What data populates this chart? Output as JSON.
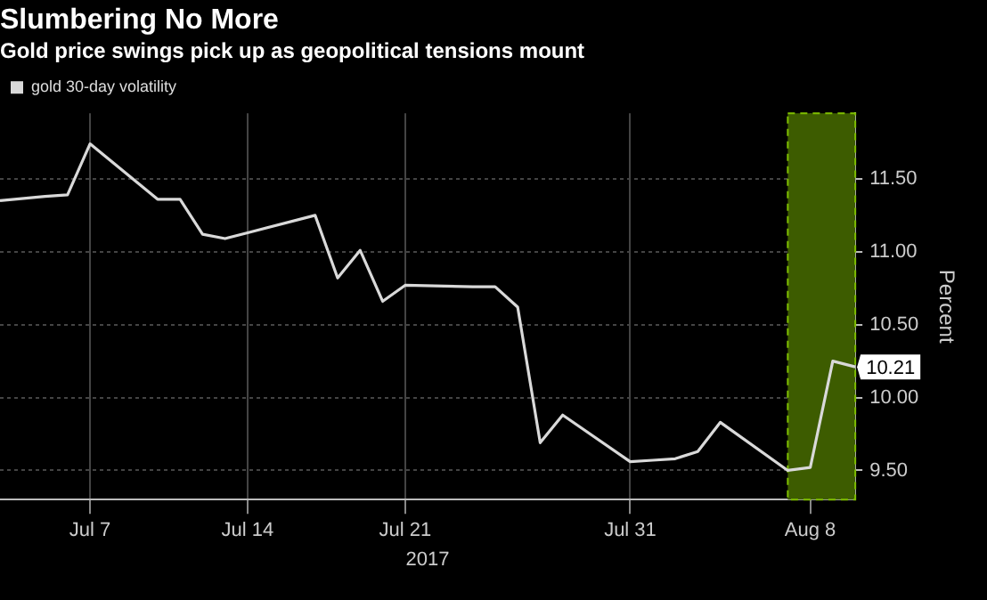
{
  "chart_data": {
    "type": "line",
    "title": "Slumbering No More",
    "subtitle": "Gold price swings pick up as geopolitical tensions mount",
    "xlabel": "2017",
    "ylabel": "Percent",
    "x": [
      "2017-07-03",
      "2017-07-05",
      "2017-07-06",
      "2017-07-07",
      "2017-07-10",
      "2017-07-11",
      "2017-07-12",
      "2017-07-13",
      "2017-07-14",
      "2017-07-17",
      "2017-07-18",
      "2017-07-19",
      "2017-07-20",
      "2017-07-21",
      "2017-07-24",
      "2017-07-25",
      "2017-07-26",
      "2017-07-27",
      "2017-07-28",
      "2017-07-31",
      "2017-08-01",
      "2017-08-02",
      "2017-08-03",
      "2017-08-04",
      "2017-08-07",
      "2017-08-08",
      "2017-08-09",
      "2017-08-10"
    ],
    "series": [
      {
        "name": "gold 30-day volatility",
        "color": "#d9d9d9",
        "values": [
          11.35,
          11.38,
          11.39,
          11.74,
          11.36,
          11.36,
          11.12,
          11.09,
          11.13,
          11.25,
          10.82,
          11.01,
          10.66,
          10.77,
          10.76,
          10.76,
          10.62,
          9.69,
          9.88,
          9.56,
          9.57,
          9.58,
          9.63,
          9.83,
          9.5,
          9.52,
          10.25,
          10.21
        ],
        "value_labels": [
          null,
          null,
          null,
          null,
          null,
          null,
          null,
          null,
          null,
          null,
          null,
          null,
          null,
          null,
          null,
          null,
          null,
          null,
          null,
          null,
          null,
          null,
          null,
          null,
          null,
          null,
          null,
          "10.21"
        ]
      }
    ],
    "xlim": [
      "2017-07-03",
      "2017-08-10"
    ],
    "xticks": [
      {
        "value": "2017-07-07",
        "label": "Jul 7"
      },
      {
        "value": "2017-07-14",
        "label": "Jul 14"
      },
      {
        "value": "2017-07-21",
        "label": "Jul 21"
      },
      {
        "value": "2017-07-31",
        "label": "Jul 31"
      },
      {
        "value": "2017-08-08",
        "label": "Aug 8"
      }
    ],
    "ylim": [
      9.3,
      11.95
    ],
    "yticks": [
      {
        "value": 9.5,
        "label": "9.50"
      },
      {
        "value": 10,
        "label": "10.00"
      },
      {
        "value": 10.5,
        "label": "10.50"
      },
      {
        "value": 11,
        "label": "11.00"
      },
      {
        "value": 11.5,
        "label": "11.50"
      }
    ],
    "bands": [
      {
        "axis": "x",
        "from": "2017-08-07",
        "to": "2017-08-10",
        "color": "#3d5c00"
      }
    ],
    "grid": true,
    "legend": "top left",
    "marker": "none",
    "line_style": "solid"
  }
}
